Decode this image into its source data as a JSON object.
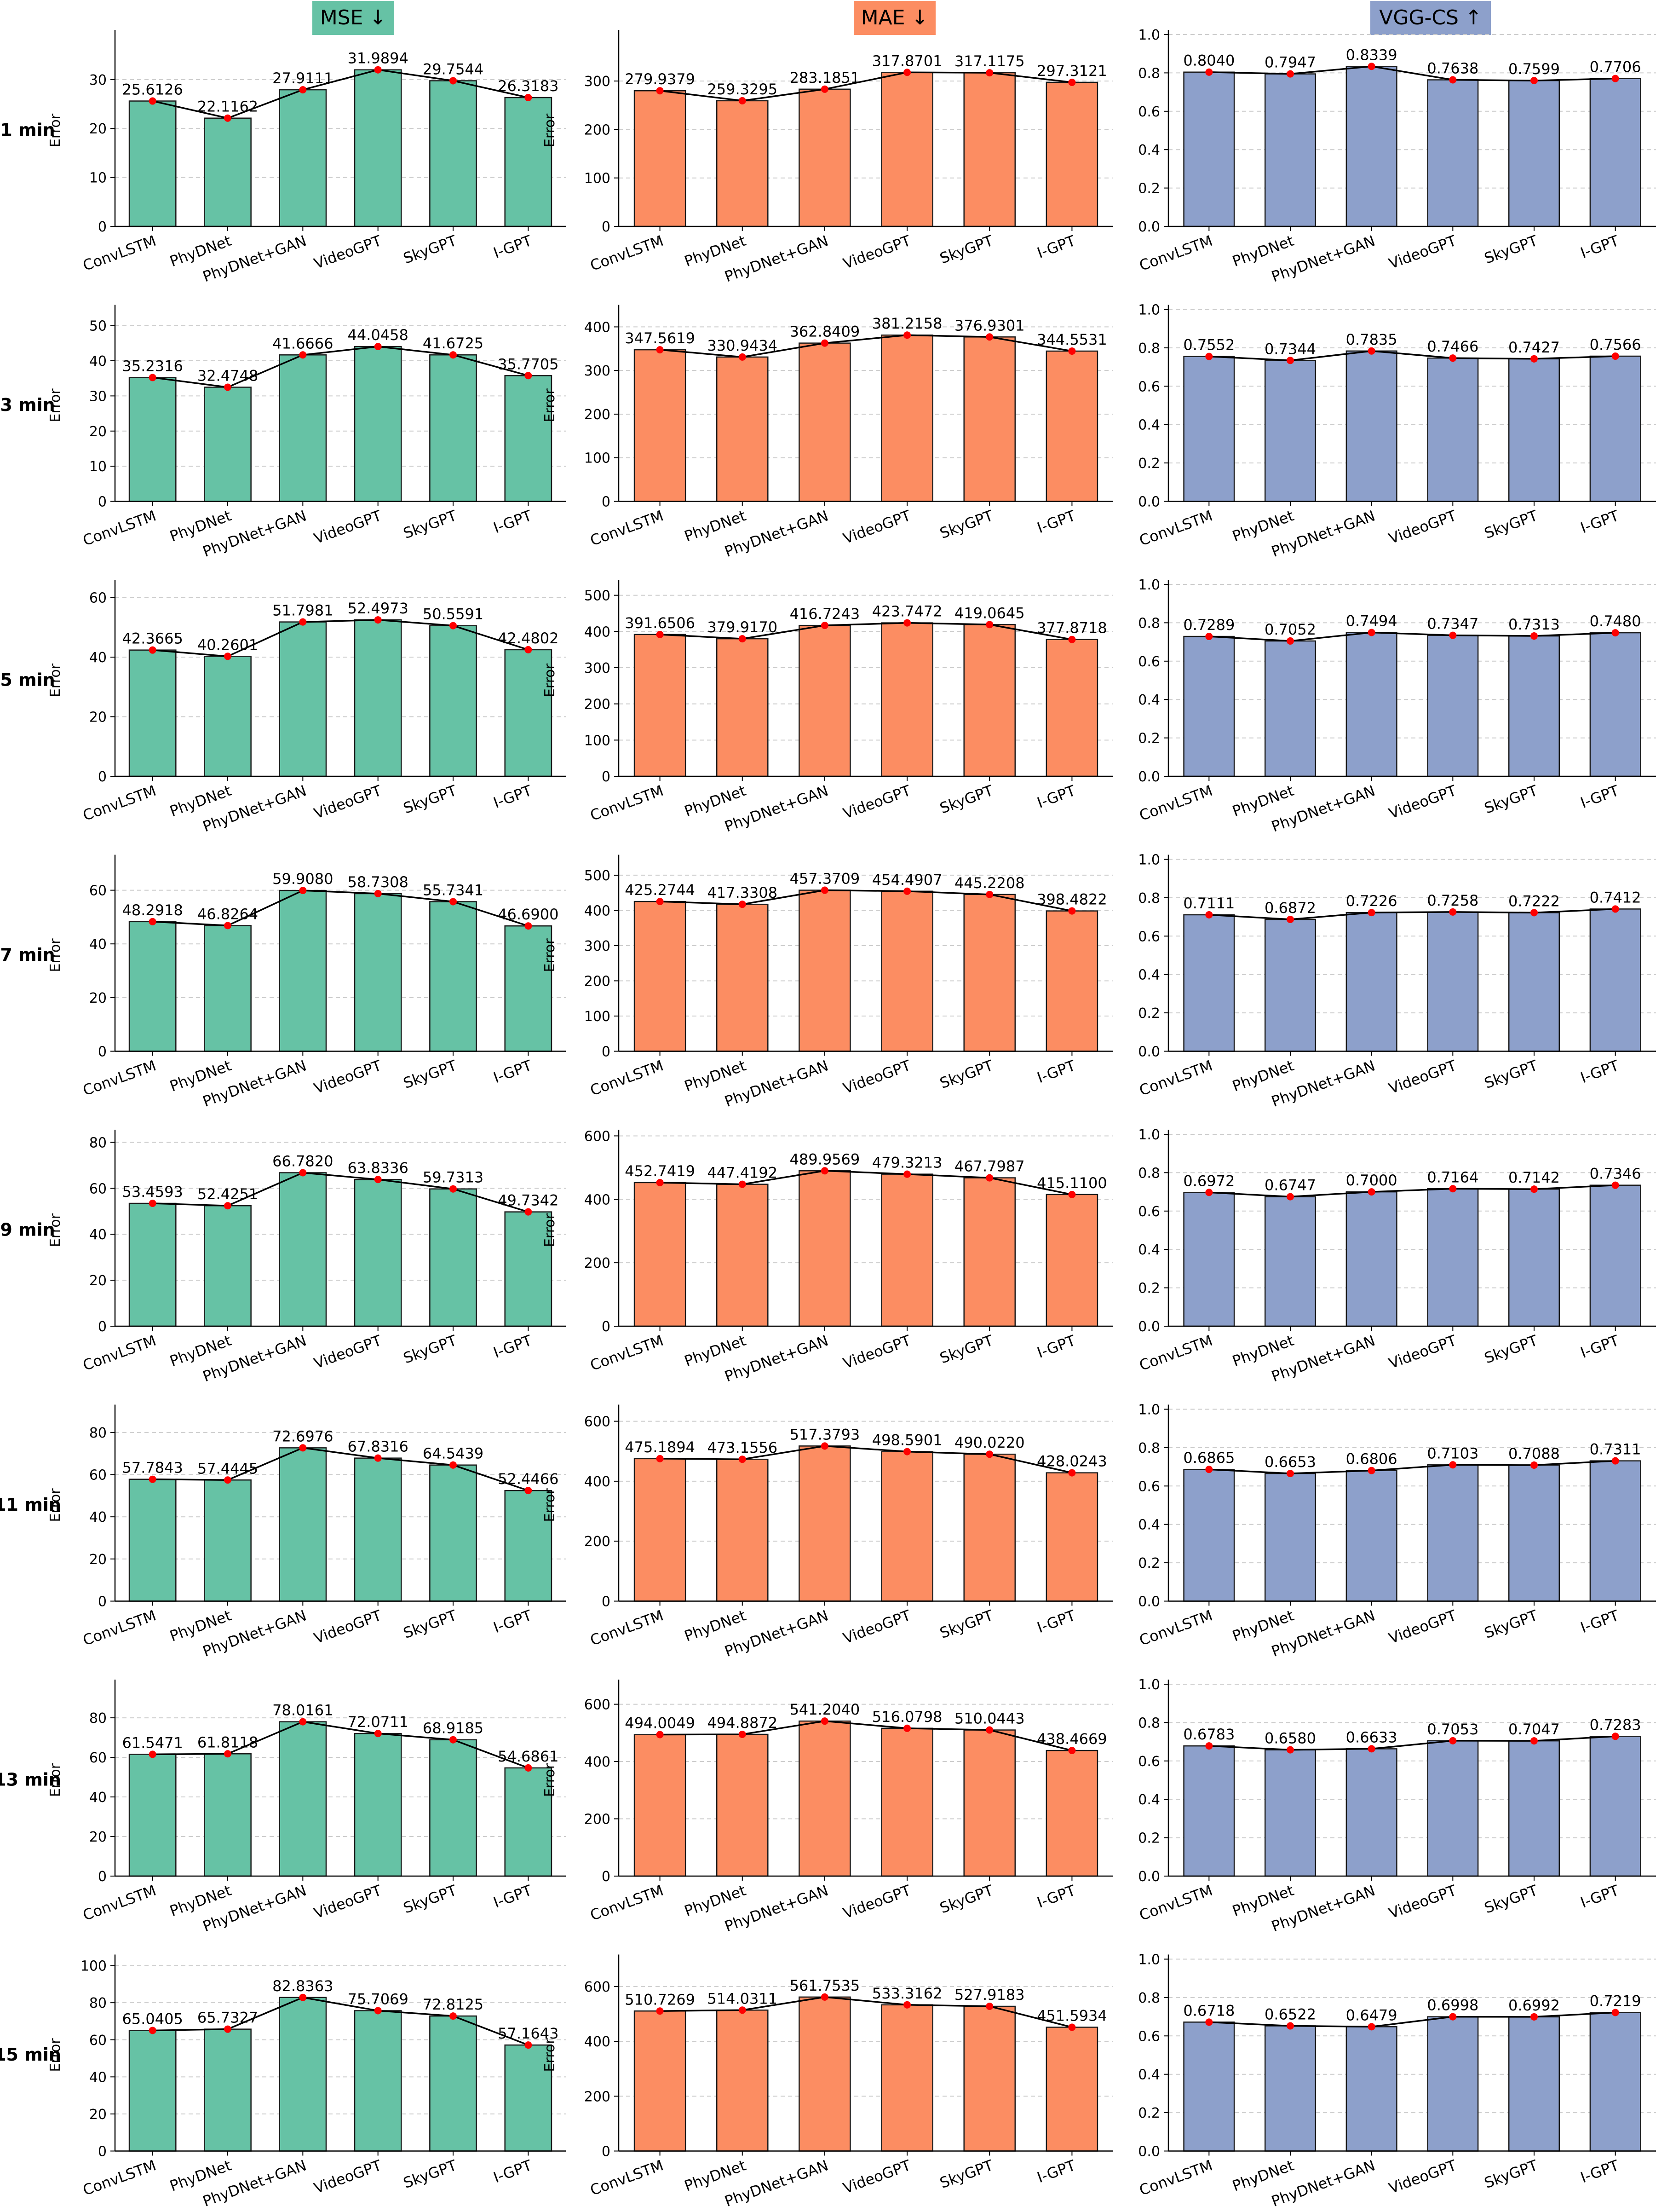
{
  "col_headers": [
    {
      "label": "MSE ↓",
      "color": "#66c2a5"
    },
    {
      "label": "MAE ↓",
      "color": "#fc8d62"
    },
    {
      "label": "VGG-CS ↑",
      "color": "#8da0cb"
    }
  ],
  "row_labels": [
    "1 min",
    "3 min",
    "5 min",
    "7 min",
    "9 min",
    "11 min",
    "13 min",
    "15 min"
  ],
  "ylabel": "Error",
  "colors": {
    "mse": "#66c2a5",
    "mae": "#fc8d62",
    "vgg": "#8da0cb",
    "marker": "#ff0000",
    "line": "#000000"
  },
  "chart_data": {
    "type": "bar",
    "categories": [
      "ConvLSTM",
      "PhyDNet",
      "PhyDNet+GAN",
      "VideoGPT",
      "SkyGPT",
      "I-GPT"
    ],
    "panels": [
      {
        "row": "1 min",
        "metric": "MSE ↓",
        "ylabel": "Error",
        "ylim": [
          0,
          39.2
        ],
        "yticks": [
          0,
          10,
          20,
          30
        ],
        "values": [
          25.6126,
          22.1162,
          27.9111,
          31.9894,
          29.7544,
          26.3183
        ],
        "labels": [
          "25.6126",
          "22.1162",
          "27.9111",
          "31.9894",
          "29.7544",
          "26.3183"
        ]
      },
      {
        "row": "1 min",
        "metric": "MAE ↓",
        "ylabel": "Error",
        "ylim": [
          0,
          396
        ],
        "yticks": [
          0,
          100,
          200,
          300
        ],
        "values": [
          279.9379,
          259.3295,
          283.1851,
          317.8701,
          317.1175,
          297.3121
        ],
        "labels": [
          "279.9379",
          "259.3295",
          "283.1851",
          "317.8701",
          "317.1175",
          "297.3121"
        ]
      },
      {
        "row": "1 min",
        "metric": "VGG-CS ↑",
        "ylabel": "",
        "ylim": [
          0,
          1.0
        ],
        "yticks": [
          0,
          0.2,
          0.4,
          0.6,
          0.8,
          1.0
        ],
        "values": [
          0.804,
          0.7947,
          0.8339,
          0.7638,
          0.7599,
          0.7706
        ],
        "labels": [
          "0.8040",
          "0.7947",
          "0.8339",
          "0.7638",
          "0.7599",
          "0.7706"
        ]
      },
      {
        "row": "3 min",
        "metric": "MSE ↓",
        "ylabel": "Error",
        "ylim": [
          0,
          54.6
        ],
        "yticks": [
          0,
          10,
          20,
          30,
          40,
          50
        ],
        "values": [
          35.2316,
          32.4748,
          41.6666,
          44.0458,
          41.6725,
          35.7705
        ],
        "labels": [
          "35.2316",
          "32.4748",
          "41.6666",
          "44.0458",
          "41.6725",
          "35.7705"
        ]
      },
      {
        "row": "3 min",
        "metric": "MAE ↓",
        "ylabel": "Error",
        "ylim": [
          0,
          440
        ],
        "yticks": [
          0,
          100,
          200,
          300,
          400
        ],
        "values": [
          347.5619,
          330.9434,
          362.8409,
          381.2158,
          376.9301,
          344.5531
        ],
        "labels": [
          "347.5619",
          "330.9434",
          "362.8409",
          "381.2158",
          "376.9301",
          "344.5531"
        ]
      },
      {
        "row": "3 min",
        "metric": "VGG-CS ↑",
        "ylabel": "",
        "ylim": [
          0,
          1.0
        ],
        "yticks": [
          0,
          0.2,
          0.4,
          0.6,
          0.8,
          1.0
        ],
        "values": [
          0.7552,
          0.7344,
          0.7835,
          0.7466,
          0.7427,
          0.7566
        ],
        "labels": [
          "0.7552",
          "0.7344",
          "0.7835",
          "0.7466",
          "0.7427",
          "0.7566"
        ]
      },
      {
        "row": "5 min",
        "metric": "MSE ↓",
        "ylabel": "Error",
        "ylim": [
          0,
          64.4
        ],
        "yticks": [
          0,
          20,
          40,
          60
        ],
        "values": [
          42.3665,
          40.2601,
          51.7981,
          52.4973,
          50.5591,
          42.4802
        ],
        "labels": [
          "42.3665",
          "40.2601",
          "51.7981",
          "52.4973",
          "50.5591",
          "42.4802"
        ]
      },
      {
        "row": "5 min",
        "metric": "MAE ↓",
        "ylabel": "Error",
        "ylim": [
          0,
          530
        ],
        "yticks": [
          0,
          100,
          200,
          300,
          400,
          500
        ],
        "values": [
          391.6506,
          379.917,
          416.7243,
          423.7472,
          419.0645,
          377.8718
        ],
        "labels": [
          "391.6506",
          "379.9170",
          "416.7243",
          "423.7472",
          "419.0645",
          "377.8718"
        ]
      },
      {
        "row": "5 min",
        "metric": "VGG-CS ↑",
        "ylabel": "",
        "ylim": [
          0,
          1.0
        ],
        "yticks": [
          0,
          0.2,
          0.4,
          0.6,
          0.8,
          1.0
        ],
        "values": [
          0.7289,
          0.7052,
          0.7494,
          0.7347,
          0.7313,
          0.748
        ],
        "labels": [
          "0.7289",
          "0.7052",
          "0.7494",
          "0.7347",
          "0.7313",
          "0.7480"
        ]
      },
      {
        "row": "7 min",
        "metric": "MSE ↓",
        "ylabel": "Error",
        "ylim": [
          0,
          71.5
        ],
        "yticks": [
          0,
          20,
          40,
          60
        ],
        "values": [
          48.2918,
          46.8264,
          59.908,
          58.7308,
          55.7341,
          46.69
        ],
        "labels": [
          "48.2918",
          "46.8264",
          "59.9080",
          "58.7308",
          "55.7341",
          "46.6900"
        ]
      },
      {
        "row": "7 min",
        "metric": "MAE ↓",
        "ylabel": "Error",
        "ylim": [
          0,
          545
        ],
        "yticks": [
          0,
          100,
          200,
          300,
          400,
          500
        ],
        "values": [
          425.2744,
          417.3308,
          457.3709,
          454.4907,
          445.2208,
          398.4822
        ],
        "labels": [
          "425.2744",
          "417.3308",
          "457.3709",
          "454.4907",
          "445.2208",
          "398.4822"
        ]
      },
      {
        "row": "7 min",
        "metric": "VGG-CS ↑",
        "ylabel": "",
        "ylim": [
          0,
          1.0
        ],
        "yticks": [
          0,
          0.2,
          0.4,
          0.6,
          0.8,
          1.0
        ],
        "values": [
          0.7111,
          0.6872,
          0.7226,
          0.7258,
          0.7222,
          0.7412
        ],
        "labels": [
          "0.7111",
          "0.6872",
          "0.7226",
          "0.7258",
          "0.7222",
          "0.7412"
        ]
      },
      {
        "row": "9 min",
        "metric": "MSE ↓",
        "ylabel": "Error",
        "ylim": [
          0,
          83.5
        ],
        "yticks": [
          0,
          20,
          40,
          60,
          80
        ],
        "values": [
          53.4593,
          52.4251,
          66.782,
          63.8336,
          59.7313,
          49.7342
        ],
        "labels": [
          "53.4593",
          "52.4251",
          "66.7820",
          "63.8336",
          "59.7313",
          "49.7342"
        ]
      },
      {
        "row": "9 min",
        "metric": "MAE ↓",
        "ylabel": "Error",
        "ylim": [
          0,
          605
        ],
        "yticks": [
          0,
          200,
          400,
          600
        ],
        "values": [
          452.7419,
          447.4192,
          489.9569,
          479.3213,
          467.7987,
          415.11
        ],
        "labels": [
          "452.7419",
          "447.4192",
          "489.9569",
          "479.3213",
          "467.7987",
          "415.1100"
        ]
      },
      {
        "row": "9 min",
        "metric": "VGG-CS ↑",
        "ylabel": "",
        "ylim": [
          0,
          1.0
        ],
        "yticks": [
          0,
          0.2,
          0.4,
          0.6,
          0.8,
          1.0
        ],
        "values": [
          0.6972,
          0.6747,
          0.7,
          0.7164,
          0.7142,
          0.7346
        ],
        "labels": [
          "0.6972",
          "0.6747",
          "0.7000",
          "0.7164",
          "0.7142",
          "0.7346"
        ]
      },
      {
        "row": "11 min",
        "metric": "MSE ↓",
        "ylabel": "Error",
        "ylim": [
          0,
          91
        ],
        "yticks": [
          0,
          20,
          40,
          60,
          80
        ],
        "values": [
          57.7843,
          57.4445,
          72.6976,
          67.8316,
          64.5439,
          52.4466
        ],
        "labels": [
          "57.7843",
          "57.4445",
          "72.6976",
          "67.8316",
          "64.5439",
          "52.4466"
        ]
      },
      {
        "row": "11 min",
        "metric": "MAE ↓",
        "ylabel": "Error",
        "ylim": [
          0,
          640
        ],
        "yticks": [
          0,
          200,
          400,
          600
        ],
        "values": [
          475.1894,
          473.1556,
          517.3793,
          498.5901,
          490.022,
          428.0243
        ],
        "labels": [
          "475.1894",
          "473.1556",
          "517.3793",
          "498.5901",
          "490.0220",
          "428.0243"
        ]
      },
      {
        "row": "11 min",
        "metric": "VGG-CS ↑",
        "ylabel": "",
        "ylim": [
          0,
          1.0
        ],
        "yticks": [
          0,
          0.2,
          0.4,
          0.6,
          0.8,
          1.0
        ],
        "values": [
          0.6865,
          0.6653,
          0.6806,
          0.7103,
          0.7088,
          0.7311
        ],
        "labels": [
          "0.6865",
          "0.6653",
          "0.6806",
          "0.7103",
          "0.7088",
          "0.7311"
        ]
      },
      {
        "row": "13 min",
        "metric": "MSE ↓",
        "ylabel": "Error",
        "ylim": [
          0,
          97
        ],
        "yticks": [
          0,
          20,
          40,
          60,
          80
        ],
        "values": [
          61.5471,
          61.8118,
          78.0161,
          72.0711,
          68.9185,
          54.6861
        ],
        "labels": [
          "61.5471",
          "61.8118",
          "78.0161",
          "72.0711",
          "68.9185",
          "54.6861"
        ]
      },
      {
        "row": "13 min",
        "metric": "MAE ↓",
        "ylabel": "Error",
        "ylim": [
          0,
          670
        ],
        "yticks": [
          0,
          200,
          400,
          600
        ],
        "values": [
          494.0049,
          494.8872,
          541.204,
          516.0798,
          510.0443,
          438.4669
        ],
        "labels": [
          "494.0049",
          "494.8872",
          "541.2040",
          "516.0798",
          "510.0443",
          "438.4669"
        ]
      },
      {
        "row": "13 min",
        "metric": "VGG-CS ↑",
        "ylabel": "",
        "ylim": [
          0,
          1.0
        ],
        "yticks": [
          0,
          0.2,
          0.4,
          0.6,
          0.8,
          1.0
        ],
        "values": [
          0.6783,
          0.658,
          0.6633,
          0.7053,
          0.7047,
          0.7283
        ],
        "labels": [
          "0.6783",
          "0.6580",
          "0.6633",
          "0.7053",
          "0.7047",
          "0.7283"
        ]
      },
      {
        "row": "15 min",
        "metric": "MSE ↓",
        "ylabel": "Error",
        "ylim": [
          0,
          103.5
        ],
        "yticks": [
          0,
          20,
          40,
          60,
          80,
          100
        ],
        "values": [
          65.0405,
          65.7327,
          82.8363,
          75.7069,
          72.8125,
          57.1643
        ],
        "labels": [
          "65.0405",
          "65.7327",
          "82.8363",
          "75.7069",
          "72.8125",
          "57.1643"
        ]
      },
      {
        "row": "15 min",
        "metric": "MAE ↓",
        "ylabel": "Error",
        "ylim": [
          0,
          700
        ],
        "yticks": [
          0,
          200,
          400,
          600
        ],
        "values": [
          510.7269,
          514.0311,
          561.7535,
          533.3162,
          527.9183,
          451.5934
        ],
        "labels": [
          "510.7269",
          "514.0311",
          "561.7535",
          "533.3162",
          "527.9183",
          "451.5934"
        ]
      },
      {
        "row": "15 min",
        "metric": "VGG-CS ↑",
        "ylabel": "",
        "ylim": [
          0,
          1.0
        ],
        "yticks": [
          0,
          0.2,
          0.4,
          0.6,
          0.8,
          1.0
        ],
        "values": [
          0.6718,
          0.6522,
          0.6479,
          0.6998,
          0.6992,
          0.7219
        ],
        "labels": [
          "0.6718",
          "0.6522",
          "0.6479",
          "0.6998",
          "0.6992",
          "0.7219"
        ]
      }
    ],
    "grid": "horizontal dashed",
    "legend": "none"
  }
}
